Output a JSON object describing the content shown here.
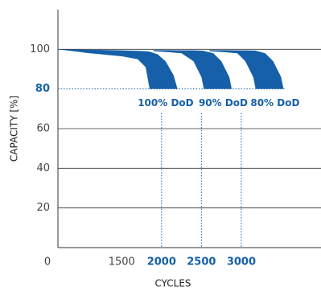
{
  "chart_data": {
    "type": "area_band",
    "ylabel": "CAPACITY [%]",
    "xlabel": "CYCLES",
    "origin_label": "0",
    "xlim": [
      700,
      4000
    ],
    "ylim": [
      0,
      120
    ],
    "xticks": [
      1500,
      2000,
      2500,
      3000
    ],
    "yticks": [
      20,
      40,
      60,
      80,
      100
    ],
    "reference_lines": {
      "y": 80,
      "x": [
        2000,
        2500,
        3000
      ]
    },
    "grid": true,
    "color": "#1560a8",
    "series": [
      {
        "name": "100% DoD",
        "x": [
          700,
          1100,
          1500,
          1700,
          1800,
          1850,
          1950,
          2050,
          2150,
          2200
        ],
        "values": [
          100,
          99.8,
          99.5,
          99.2,
          99,
          98.8,
          97.5,
          94,
          87,
          80
        ],
        "lower": [
          100,
          98,
          96.5,
          95,
          91,
          80,
          80,
          80,
          80,
          80
        ]
      },
      {
        "name": "90% DoD",
        "x": [
          1900,
          2100,
          2250,
          2400,
          2500,
          2530,
          2650,
          2750,
          2850,
          2880
        ],
        "values": [
          99.6,
          99.6,
          99.5,
          99.5,
          99.3,
          99.2,
          98,
          94,
          86,
          80
        ],
        "lower": [
          99,
          98.5,
          98,
          94,
          86,
          80,
          80,
          80,
          80,
          80
        ]
      },
      {
        "name": "80% DoD",
        "x": [
          2600,
          2800,
          2950,
          3050,
          3150,
          3180,
          3300,
          3400,
          3500,
          3530
        ],
        "values": [
          99.6,
          99.6,
          99.5,
          99.5,
          99.4,
          99.3,
          98,
          94,
          86,
          80
        ],
        "lower": [
          99,
          98.5,
          98,
          94,
          86,
          80,
          80,
          80,
          80,
          80
        ]
      }
    ]
  }
}
